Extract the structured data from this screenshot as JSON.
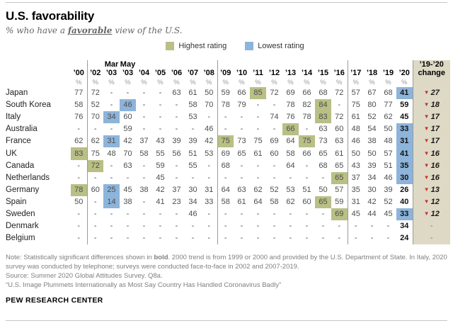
{
  "title": "U.S. favorability",
  "subtitle": {
    "prefix": "% who have a ",
    "emphasis": "favorable",
    "suffix": " view of the U.S."
  },
  "legend": {
    "highest_label": "Highest rating",
    "lowest_label": "Lowest rating"
  },
  "colors": {
    "highest": "#b9bf85",
    "lowest": "#8db4da",
    "change_bg": "#ded9c5",
    "triangle": "#c0392b"
  },
  "chart_data": {
    "type": "table",
    "title": "U.S. favorability",
    "subtitle": "% who have a favorable view of the U.S.",
    "unit": "%",
    "top_labels": [
      "",
      "",
      "Mar",
      "May",
      "",
      "",
      "",
      "",
      "",
      "",
      "",
      "",
      "",
      "",
      "",
      "",
      "",
      "",
      "",
      "",
      ""
    ],
    "columns": [
      "’00",
      "’02",
      "’03",
      "’03",
      "’04",
      "’05",
      "’06",
      "’07",
      "’08",
      "’09",
      "’10",
      "’11",
      "’12",
      "’13",
      "’14",
      "’15",
      "’16",
      "’17",
      "’18",
      "’19",
      "’20"
    ],
    "change_header_line1": "’19-’20",
    "change_header_line2": "change",
    "separators_after": [
      0,
      8,
      16,
      20
    ],
    "rows": [
      {
        "country": "Japan",
        "values": [
          "77",
          "72",
          "-",
          "-",
          "-",
          "-",
          "63",
          "61",
          "50",
          "59",
          "66",
          "85",
          "72",
          "69",
          "66",
          "68",
          "72",
          "57",
          "67",
          "68",
          "41"
        ],
        "hi": [
          11
        ],
        "lo": [
          20
        ],
        "change": "27"
      },
      {
        "country": "South Korea",
        "values": [
          "58",
          "52",
          "-",
          "46",
          "-",
          "-",
          "-",
          "58",
          "70",
          "78",
          "79",
          "-",
          "-",
          "78",
          "82",
          "84",
          "-",
          "75",
          "80",
          "77",
          "59"
        ],
        "hi": [
          15
        ],
        "lo": [
          3
        ],
        "change": "18"
      },
      {
        "country": "Italy",
        "values": [
          "76",
          "70",
          "34",
          "60",
          "-",
          "-",
          "-",
          "53",
          "-",
          "-",
          "-",
          "-",
          "74",
          "76",
          "78",
          "83",
          "72",
          "61",
          "52",
          "62",
          "45"
        ],
        "hi": [
          15
        ],
        "lo": [
          2
        ],
        "change": "17"
      },
      {
        "country": "Australia",
        "values": [
          "-",
          "-",
          "-",
          "59",
          "-",
          "-",
          "-",
          "-",
          "46",
          "-",
          "-",
          "-",
          "-",
          "66",
          "-",
          "63",
          "60",
          "48",
          "54",
          "50",
          "33"
        ],
        "hi": [
          13
        ],
        "lo": [
          20
        ],
        "change": "17"
      },
      {
        "country": "France",
        "values": [
          "62",
          "62",
          "31",
          "42",
          "37",
          "43",
          "39",
          "39",
          "42",
          "75",
          "73",
          "75",
          "69",
          "64",
          "75",
          "73",
          "63",
          "46",
          "38",
          "48",
          "31"
        ],
        "hi": [
          9,
          14
        ],
        "lo": [
          2,
          20
        ],
        "change": "17"
      },
      {
        "country": "UK",
        "values": [
          "83",
          "75",
          "48",
          "70",
          "58",
          "55",
          "56",
          "51",
          "53",
          "69",
          "65",
          "61",
          "60",
          "58",
          "66",
          "65",
          "61",
          "50",
          "50",
          "57",
          "41"
        ],
        "hi": [
          0
        ],
        "lo": [
          20
        ],
        "change": "16"
      },
      {
        "country": "Canada",
        "values": [
          "-",
          "72",
          "-",
          "63",
          "-",
          "59",
          "-",
          "55",
          "-",
          "68",
          "-",
          "-",
          "-",
          "64",
          "-",
          "68",
          "65",
          "43",
          "39",
          "51",
          "35"
        ],
        "hi": [
          1
        ],
        "lo": [
          20
        ],
        "change": "16"
      },
      {
        "country": "Netherlands",
        "values": [
          "-",
          "-",
          "-",
          "-",
          "-",
          "45",
          "-",
          "-",
          "-",
          "-",
          "-",
          "-",
          "-",
          "-",
          "-",
          "-",
          "65",
          "37",
          "34",
          "46",
          "30"
        ],
        "hi": [
          16
        ],
        "lo": [
          20
        ],
        "change": "16"
      },
      {
        "country": "Germany",
        "values": [
          "78",
          "60",
          "25",
          "45",
          "38",
          "42",
          "37",
          "30",
          "31",
          "64",
          "63",
          "62",
          "52",
          "53",
          "51",
          "50",
          "57",
          "35",
          "30",
          "39",
          "26"
        ],
        "hi": [
          0
        ],
        "lo": [
          2
        ],
        "change": "13"
      },
      {
        "country": "Spain",
        "values": [
          "50",
          "-",
          "14",
          "38",
          "-",
          "41",
          "23",
          "34",
          "33",
          "58",
          "61",
          "64",
          "58",
          "62",
          "60",
          "65",
          "59",
          "31",
          "42",
          "52",
          "40"
        ],
        "hi": [
          15
        ],
        "lo": [
          2
        ],
        "change": "12"
      },
      {
        "country": "Sweden",
        "values": [
          "-",
          "-",
          "-",
          "-",
          "-",
          "-",
          "-",
          "46",
          "-",
          "-",
          "-",
          "-",
          "-",
          "-",
          "-",
          "-",
          "69",
          "45",
          "44",
          "45",
          "33"
        ],
        "hi": [
          16
        ],
        "lo": [
          20
        ],
        "change": "12"
      },
      {
        "country": "Denmark",
        "values": [
          "-",
          "-",
          "-",
          "-",
          "-",
          "-",
          "-",
          "-",
          "-",
          "-",
          "-",
          "-",
          "-",
          "-",
          "-",
          "-",
          "-",
          "-",
          "-",
          "-",
          "34"
        ],
        "hi": [],
        "lo": [],
        "change": "-"
      },
      {
        "country": "Belgium",
        "values": [
          "-",
          "-",
          "-",
          "-",
          "-",
          "-",
          "-",
          "-",
          "-",
          "-",
          "-",
          "-",
          "-",
          "-",
          "-",
          "-",
          "-",
          "-",
          "-",
          "-",
          "24"
        ],
        "hi": [],
        "lo": [],
        "change": "-"
      }
    ]
  },
  "notes": {
    "note_prefix": "Note: Statistically significant differences shown in ",
    "note_bold": "bold",
    "note_suffix": ". 2000 trend is from 1999 or 2000 and provided by the U.S. Department of State. In Italy, 2020 survey was conducted by telephone; surveys were conducted face-to-face in 2002 and 2007-2019.",
    "source": "Source: Summer 2020 Global Attitudes Survey. Q8a.",
    "quote": "“U.S. Image Plummets Internationally as Most Say Country Has Handled Coronavirus Badly”"
  },
  "footer": "PEW RESEARCH CENTER"
}
